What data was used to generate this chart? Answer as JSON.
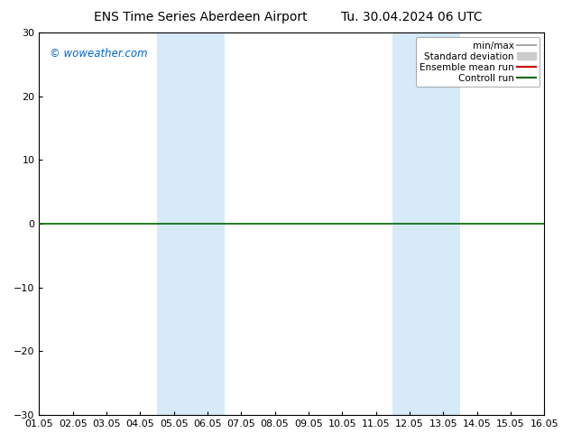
{
  "title_left": "ENS Time Series Aberdeen Airport",
  "title_right": "Tu. 30.04.2024 06 UTC",
  "watermark": "© woweather.com",
  "watermark_color": "#0066CC",
  "ylim": [
    -30,
    30
  ],
  "yticks": [
    -30,
    -20,
    -10,
    0,
    10,
    20,
    30
  ],
  "xlim": [
    0,
    15
  ],
  "xtick_labels": [
    "01.05",
    "02.05",
    "03.05",
    "04.05",
    "05.05",
    "06.05",
    "07.05",
    "08.05",
    "09.05",
    "10.05",
    "11.05",
    "12.05",
    "13.05",
    "14.05",
    "15.05",
    "16.05"
  ],
  "shaded_bands": [
    {
      "x_start": 3.5,
      "x_end": 4.5
    },
    {
      "x_start": 4.5,
      "x_end": 5.5
    },
    {
      "x_start": 10.5,
      "x_end": 11.5
    },
    {
      "x_start": 11.5,
      "x_end": 12.5
    }
  ],
  "band_color": "#d6eaf8",
  "zero_line_color": "#006600",
  "background_color": "#ffffff",
  "legend_items": [
    {
      "label": "min/max",
      "color": "#aaaaaa",
      "lw": 1.5,
      "ls": "-",
      "type": "line"
    },
    {
      "label": "Standard deviation",
      "color": "#cccccc",
      "lw": 8,
      "ls": "-",
      "type": "patch"
    },
    {
      "label": "Ensemble mean run",
      "color": "#cc0000",
      "lw": 1.5,
      "ls": "-",
      "type": "line"
    },
    {
      "label": "Controll run",
      "color": "#006600",
      "lw": 1.5,
      "ls": "-",
      "type": "line"
    }
  ],
  "title_fontsize": 10,
  "tick_fontsize": 8,
  "legend_fontsize": 7.5,
  "border_color": "#000000"
}
